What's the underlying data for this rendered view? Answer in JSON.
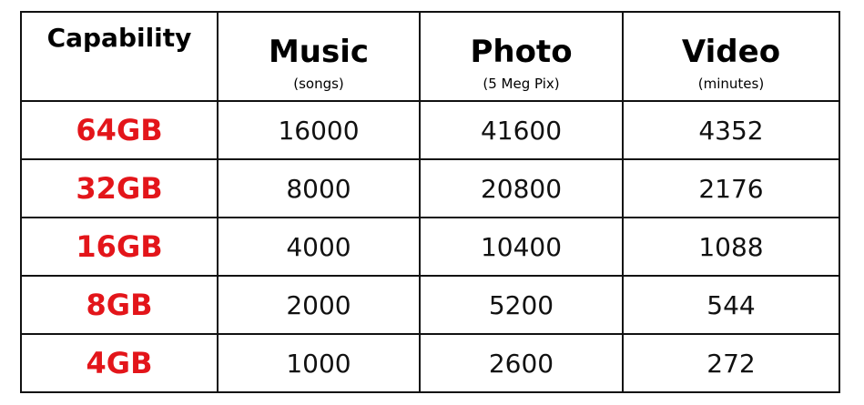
{
  "table": {
    "headers": [
      {
        "title": "Capability"
      },
      {
        "title": "Music",
        "subtitle": "(songs)"
      },
      {
        "title": "Photo",
        "subtitle": "(5 Meg Pix)"
      },
      {
        "title": "Video",
        "subtitle": "(minutes)"
      }
    ],
    "rows": [
      [
        "64GB",
        16000,
        41600,
        4352
      ],
      [
        "32GB",
        8000,
        20800,
        2176
      ],
      [
        "16GB",
        4000,
        10400,
        1088
      ],
      [
        "8GB",
        2000,
        5200,
        544
      ],
      [
        "4GB",
        1000,
        2600,
        272
      ]
    ]
  }
}
